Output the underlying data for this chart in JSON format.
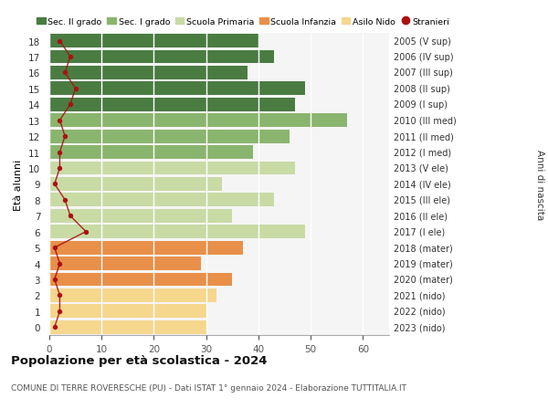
{
  "ages": [
    0,
    1,
    2,
    3,
    4,
    5,
    6,
    7,
    8,
    9,
    10,
    11,
    12,
    13,
    14,
    15,
    16,
    17,
    18
  ],
  "bar_values": [
    30,
    30,
    32,
    35,
    29,
    37,
    49,
    35,
    43,
    33,
    47,
    39,
    46,
    57,
    47,
    49,
    38,
    43,
    40
  ],
  "bar_colors": [
    "#f5d78e",
    "#f5d78e",
    "#f5d78e",
    "#e8904a",
    "#e8904a",
    "#e8904a",
    "#c8dba5",
    "#c8dba5",
    "#c8dba5",
    "#c8dba5",
    "#c8dba5",
    "#8ab56e",
    "#8ab56e",
    "#8ab56e",
    "#4a7c42",
    "#4a7c42",
    "#4a7c42",
    "#4a7c42",
    "#4a7c42"
  ],
  "stranieri_values": [
    1,
    2,
    2,
    1,
    2,
    1,
    7,
    4,
    3,
    1,
    2,
    2,
    3,
    2,
    4,
    5,
    3,
    4,
    2
  ],
  "right_labels": [
    "2023 (nido)",
    "2022 (nido)",
    "2021 (nido)",
    "2020 (mater)",
    "2019 (mater)",
    "2018 (mater)",
    "2017 (I ele)",
    "2016 (II ele)",
    "2015 (III ele)",
    "2014 (IV ele)",
    "2013 (V ele)",
    "2012 (I med)",
    "2011 (II med)",
    "2010 (III med)",
    "2009 (I sup)",
    "2008 (II sup)",
    "2007 (III sup)",
    "2006 (IV sup)",
    "2005 (V sup)"
  ],
  "color_sec2": "#4a7c42",
  "color_sec1": "#8ab56e",
  "color_prim": "#c8dba5",
  "color_infanzia": "#e8904a",
  "color_nido": "#f5d78e",
  "color_stranieri": "#aa1111",
  "title_main": "Popolazione per età scolastica - 2024",
  "title_sub": "COMUNE DI TERRE ROVERESCHE (PU) - Dati ISTAT 1° gennaio 2024 - Elaborazione TUTTITALIA.IT",
  "ylabel": "Età alunni",
  "ylabel_right": "Anni di nascita",
  "xlim": [
    0,
    65
  ],
  "xticks": [
    0,
    10,
    20,
    30,
    40,
    50,
    60
  ],
  "bg_color": "#ffffff"
}
